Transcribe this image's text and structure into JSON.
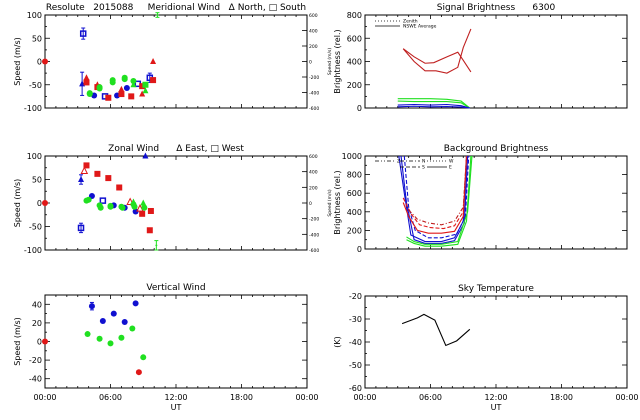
{
  "figure": {
    "station": "Resolute",
    "date_code": "2015088",
    "colors": {
      "blue": "#1010d0",
      "red": "#e01818",
      "green": "#20e020",
      "darkred": "#c02020",
      "black": "#000000"
    }
  },
  "chart_data": [
    {
      "id": "meridional",
      "type": "scatter",
      "title": "Resolute   2015088     Meridional Wind   Δ North, □ South",
      "xlabel": "",
      "ylabel": "Speed (m/s)",
      "ylabel_right": "Speed (m/s)",
      "xlim": [
        0,
        24
      ],
      "ylim": [
        -100,
        100
      ],
      "yticks": [
        -100,
        -50,
        0,
        50,
        100
      ],
      "ytick_labels": [
        "-100",
        "-50",
        "0",
        "50",
        "100"
      ],
      "yticks_right_labels": [
        "600",
        "400",
        "200",
        "0",
        "-200",
        "-400",
        "-600"
      ],
      "show_xtick_labels": false,
      "legend": [
        "Δ North",
        "□ South"
      ],
      "series": [
        {
          "name": "zenith-ref",
          "color": "red",
          "marker": "circle",
          "points": [
            [
              0,
              0
            ]
          ]
        },
        {
          "name": "blue-south",
          "color": "blue",
          "marker": "square-open",
          "points": [
            [
              3.5,
              60,
              12
            ],
            [
              5.5,
              -75
            ],
            [
              8.5,
              -48
            ],
            [
              9.6,
              -35,
              10
            ]
          ]
        },
        {
          "name": "blue-north",
          "color": "blue",
          "marker": "triangle",
          "points": [
            [
              3.4,
              -48,
              25
            ]
          ]
        },
        {
          "name": "blue",
          "color": "blue",
          "marker": "circle",
          "points": [
            [
              4.5,
              -73
            ],
            [
              6.6,
              -73
            ],
            [
              7.5,
              -57
            ]
          ]
        },
        {
          "name": "red-north",
          "color": "red",
          "marker": "triangle",
          "points": [
            [
              3.8,
              -35
            ],
            [
              4.8,
              -50
            ],
            [
              7.0,
              -60
            ],
            [
              8.9,
              -70
            ],
            [
              9.9,
              0
            ]
          ]
        },
        {
          "name": "red-south",
          "color": "red",
          "marker": "square",
          "points": [
            [
              3.8,
              -45
            ],
            [
              4.8,
              -55
            ],
            [
              5.8,
              -78
            ],
            [
              7.0,
              -70
            ],
            [
              7.9,
              -75
            ],
            [
              8.9,
              -53
            ],
            [
              9.9,
              -40
            ]
          ]
        },
        {
          "name": "green",
          "color": "green",
          "marker": "circle",
          "points": [
            [
              4.1,
              -68
            ],
            [
              4.1,
              -70
            ],
            [
              5.0,
              -55
            ],
            [
              5.0,
              -58
            ],
            [
              6.2,
              -40
            ],
            [
              6.2,
              -45
            ],
            [
              7.3,
              -35
            ],
            [
              7.3,
              -38
            ],
            [
              8.1,
              -42
            ]
          ]
        },
        {
          "name": "green-north",
          "color": "green",
          "marker": "triangle",
          "points": [
            [
              8.1,
              -50
            ],
            [
              9.2,
              -63
            ]
          ]
        },
        {
          "name": "green-south",
          "color": "green",
          "marker": "square",
          "points": [
            [
              9.2,
              -50
            ]
          ]
        },
        {
          "name": "green-err",
          "color": "green",
          "marker": "bar",
          "points": [
            [
              10.3,
              100,
              5
            ]
          ]
        }
      ]
    },
    {
      "id": "signal",
      "type": "line",
      "title": "Signal Brightness      6300",
      "xlabel": "",
      "ylabel": "Brightness (rel.)",
      "xlim": [
        0,
        24
      ],
      "ylim": [
        0,
        800
      ],
      "yticks": [
        0,
        200,
        400,
        600,
        800
      ],
      "ytick_labels": [
        "0",
        "200",
        "400",
        "600",
        "800"
      ],
      "show_xtick_labels": false,
      "legend": [
        {
          "label": "Zenith",
          "style": "dotted"
        },
        {
          "label": "NSWE Average",
          "style": "solid"
        }
      ],
      "series": [
        {
          "name": "red-upper",
          "color": "darkred",
          "style": "solid",
          "x": [
            3.5,
            4.5,
            5.5,
            6.3,
            7.5,
            8.5,
            9.0,
            9.7
          ],
          "y": [
            510,
            440,
            385,
            390,
            440,
            480,
            410,
            310
          ]
        },
        {
          "name": "red-lower",
          "color": "darkred",
          "style": "solid",
          "x": [
            3.5,
            4.5,
            5.5,
            6.5,
            7.5,
            8.5,
            9.0,
            9.7
          ],
          "y": [
            510,
            400,
            320,
            320,
            300,
            350,
            520,
            680
          ]
        },
        {
          "name": "green-upper",
          "color": "green",
          "style": "solid",
          "x": [
            3.0,
            4.5,
            6.0,
            7.5,
            8.8,
            9.6
          ],
          "y": [
            80,
            80,
            80,
            75,
            60,
            0
          ]
        },
        {
          "name": "green-lower",
          "color": "green",
          "style": "solid",
          "x": [
            3.0,
            4.5,
            6.0,
            7.5,
            8.8,
            9.6
          ],
          "y": [
            60,
            55,
            55,
            55,
            45,
            0
          ]
        },
        {
          "name": "blue-upper",
          "color": "blue",
          "style": "solid",
          "x": [
            3.0,
            4.5,
            6.0,
            7.5,
            8.8,
            9.6
          ],
          "y": [
            25,
            30,
            25,
            30,
            20,
            0
          ]
        },
        {
          "name": "blue-lower",
          "color": "blue",
          "style": "solid",
          "x": [
            3.0,
            4.5,
            6.0,
            7.5,
            8.8,
            9.6
          ],
          "y": [
            10,
            15,
            10,
            12,
            8,
            0
          ]
        }
      ]
    },
    {
      "id": "zonal",
      "type": "scatter",
      "title": "Zonal Wind      Δ East, □ West",
      "xlabel": "",
      "ylabel": "Speed (m/s)",
      "ylabel_right": "Speed (m/s)",
      "xlim": [
        0,
        24
      ],
      "ylim": [
        -100,
        100
      ],
      "yticks": [
        -100,
        -50,
        0,
        50,
        100
      ],
      "ytick_labels": [
        "-100",
        "-50",
        "0",
        "50",
        "100"
      ],
      "yticks_right_labels": [
        "600",
        "400",
        "200",
        "0",
        "-200",
        "-400",
        "-600"
      ],
      "show_xtick_labels": false,
      "legend": [
        "Δ East",
        "□ West"
      ],
      "series": [
        {
          "name": "zenith-ref",
          "color": "red",
          "marker": "circle",
          "points": [
            [
              0,
              0
            ]
          ]
        },
        {
          "name": "blue-east",
          "color": "blue",
          "marker": "triangle",
          "points": [
            [
              3.3,
              50,
              10
            ],
            [
              9.2,
              100
            ]
          ]
        },
        {
          "name": "blue-west",
          "color": "blue",
          "marker": "square-open",
          "points": [
            [
              3.3,
              -53,
              10
            ],
            [
              5.3,
              5
            ]
          ]
        },
        {
          "name": "blue",
          "color": "blue",
          "marker": "circle",
          "points": [
            [
              4.3,
              15
            ],
            [
              6.3,
              -5
            ],
            [
              7.3,
              -10
            ],
            [
              8.3,
              -18
            ]
          ]
        },
        {
          "name": "red-east",
          "color": "red",
          "marker": "triangle-open",
          "points": [
            [
              3.6,
              68
            ],
            [
              7.8,
              2
            ],
            [
              8.7,
              -12
            ]
          ]
        },
        {
          "name": "red-west",
          "color": "red",
          "marker": "square",
          "points": [
            [
              3.8,
              80
            ],
            [
              4.8,
              62
            ],
            [
              5.8,
              53
            ],
            [
              6.8,
              33
            ],
            [
              8.9,
              -23
            ],
            [
              9.7,
              -17
            ],
            [
              9.6,
              -58
            ]
          ]
        },
        {
          "name": "green",
          "color": "green",
          "marker": "circle",
          "points": [
            [
              3.8,
              5
            ],
            [
              4.0,
              7
            ],
            [
              5.0,
              -5
            ],
            [
              5.1,
              -10
            ],
            [
              6.0,
              -6
            ],
            [
              6.0,
              -8
            ],
            [
              7.0,
              -8
            ],
            [
              7.1,
              -10
            ],
            [
              8.1,
              -3
            ],
            [
              8.2,
              -8
            ],
            [
              9.1,
              -10
            ]
          ]
        },
        {
          "name": "green-east",
          "color": "green",
          "marker": "triangle",
          "points": [
            [
              8.1,
              2
            ],
            [
              9.0,
              0
            ]
          ]
        },
        {
          "name": "green-err",
          "color": "green",
          "marker": "bar",
          "points": [
            [
              10.2,
              -90,
              10
            ]
          ]
        }
      ]
    },
    {
      "id": "background",
      "type": "line",
      "title": "Background Brightness",
      "xlabel": "",
      "ylabel": "Brightness (rel.)",
      "xlim": [
        0,
        24
      ],
      "ylim": [
        0,
        1000
      ],
      "yticks": [
        0,
        200,
        400,
        600,
        800,
        1000
      ],
      "ytick_labels": [
        "0",
        "200",
        "400",
        "600",
        "800",
        "1000"
      ],
      "show_xtick_labels": false,
      "legend": [
        {
          "label": "Z",
          "style": "dashdotdot"
        },
        {
          "label": "N",
          "style": "dashdot"
        },
        {
          "label": "S",
          "style": "dashed"
        },
        {
          "label": "W",
          "style": "dotted"
        },
        {
          "label": "E",
          "style": "solid"
        }
      ],
      "series": [
        {
          "name": "blue-1",
          "color": "blue",
          "style": "solid",
          "x": [
            3.1,
            3.6,
            4.2,
            5.5,
            7.0,
            8.2,
            9.0,
            9.3
          ],
          "y": [
            1000,
            600,
            150,
            80,
            80,
            120,
            300,
            1000
          ]
        },
        {
          "name": "blue-2",
          "color": "blue",
          "style": "solid",
          "x": [
            3.3,
            3.8,
            4.5,
            5.5,
            7.0,
            8.2,
            9.1,
            9.4
          ],
          "y": [
            1000,
            500,
            100,
            60,
            60,
            90,
            280,
            1000
          ]
        },
        {
          "name": "blue-3",
          "color": "blue",
          "style": "dashed",
          "x": [
            3.6,
            4.0,
            4.6,
            5.8,
            7.0,
            8.4,
            9.2,
            9.5
          ],
          "y": [
            1000,
            450,
            200,
            120,
            120,
            160,
            350,
            1000
          ]
        },
        {
          "name": "red-1",
          "color": "red",
          "style": "solid",
          "x": [
            3.5,
            4.0,
            4.8,
            5.8,
            7.0,
            8.2,
            9.0,
            9.3
          ],
          "y": [
            500,
            350,
            200,
            170,
            170,
            190,
            350,
            1000
          ]
        },
        {
          "name": "red-2",
          "color": "red",
          "style": "dashed",
          "x": [
            3.5,
            4.2,
            5.0,
            6.0,
            7.2,
            8.2,
            9.0,
            9.3
          ],
          "y": [
            550,
            380,
            260,
            230,
            220,
            250,
            400,
            1000
          ]
        },
        {
          "name": "red-3",
          "color": "darkred",
          "style": "dashdot",
          "x": [
            4.0,
            4.8,
            5.8,
            7.0,
            8.2,
            9.0,
            9.3
          ],
          "y": [
            420,
            320,
            280,
            260,
            300,
            450,
            1000
          ]
        },
        {
          "name": "green-1",
          "color": "green",
          "style": "solid",
          "x": [
            3.8,
            4.5,
            5.5,
            7.0,
            8.5,
            9.3,
            9.7
          ],
          "y": [
            100,
            60,
            30,
            30,
            50,
            300,
            1000
          ]
        },
        {
          "name": "green-2",
          "color": "green",
          "style": "solid",
          "x": [
            3.8,
            4.5,
            5.5,
            7.0,
            8.5,
            9.4,
            9.8
          ],
          "y": [
            130,
            80,
            50,
            50,
            80,
            400,
            1000
          ]
        }
      ]
    },
    {
      "id": "vertical",
      "type": "scatter",
      "title": "Vertical Wind",
      "xlabel": "UT",
      "ylabel": "Speed (m/s)",
      "xlim": [
        0,
        24
      ],
      "ylim": [
        -50,
        50
      ],
      "yticks": [
        -40,
        -20,
        0,
        20,
        40
      ],
      "ytick_labels": [
        "-40",
        "-20",
        "0",
        "20",
        "40"
      ],
      "xticks": [
        0,
        6,
        12,
        18,
        24
      ],
      "xtick_labels": [
        "00:00",
        "06:00",
        "12:00",
        "18:00",
        "00:00"
      ],
      "show_xtick_labels": true,
      "series": [
        {
          "name": "zenith-ref",
          "color": "red",
          "marker": "circle",
          "points": [
            [
              0,
              0
            ]
          ]
        },
        {
          "name": "blue",
          "color": "blue",
          "marker": "circle",
          "points": [
            [
              4.3,
              38,
              4
            ],
            [
              5.3,
              22
            ],
            [
              6.3,
              30
            ],
            [
              7.3,
              21
            ],
            [
              8.3,
              41
            ]
          ]
        },
        {
          "name": "green",
          "color": "green",
          "marker": "circle",
          "points": [
            [
              3.9,
              8
            ],
            [
              5.0,
              3
            ],
            [
              6.0,
              -2
            ],
            [
              7.0,
              4
            ],
            [
              8.0,
              14
            ],
            [
              9.0,
              -17
            ]
          ]
        },
        {
          "name": "red",
          "color": "red",
          "marker": "circle",
          "points": [
            [
              8.6,
              -33
            ]
          ]
        }
      ]
    },
    {
      "id": "skytemp",
      "type": "line",
      "title": "Sky Temperature",
      "xlabel": "UT",
      "ylabel": "(K)",
      "xlim": [
        0,
        24
      ],
      "ylim": [
        -60,
        -20
      ],
      "yticks": [
        -60,
        -50,
        -40,
        -30,
        -20
      ],
      "ytick_labels": [
        "-60",
        "-50",
        "-40",
        "-30",
        "-20"
      ],
      "xticks": [
        0,
        6,
        12,
        18,
        24
      ],
      "xtick_labels": [
        "00:00",
        "06:00",
        "12:00",
        "18:00",
        "00:00"
      ],
      "show_xtick_labels": true,
      "series": [
        {
          "name": "sky-temp",
          "color": "black",
          "style": "solid",
          "x": [
            3.4,
            4.8,
            5.4,
            6.4,
            7.4,
            8.4,
            9.6
          ],
          "y": [
            -32,
            -29.5,
            -28,
            -30.5,
            -41.5,
            -39.5,
            -34.5
          ]
        }
      ]
    }
  ]
}
